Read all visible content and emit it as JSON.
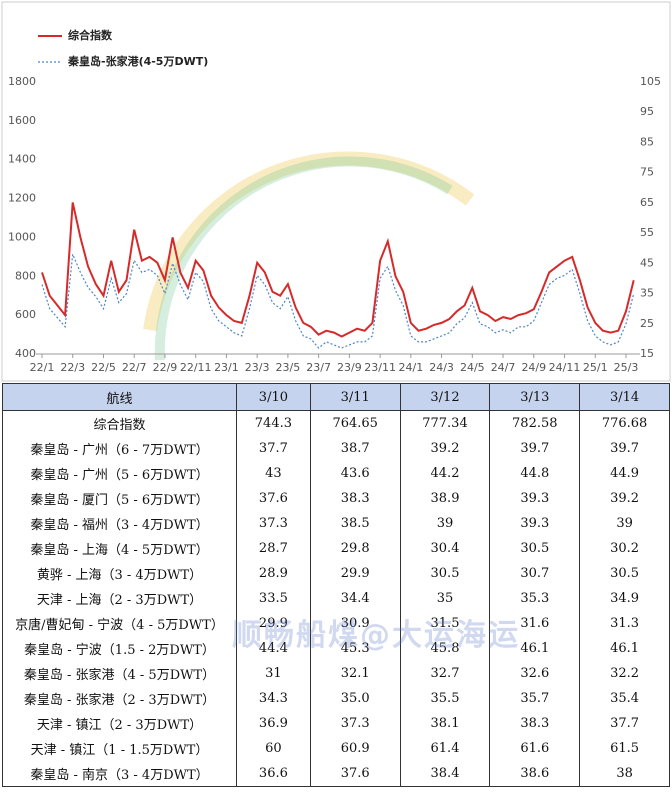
{
  "chart_data": {
    "type": "line",
    "categories": [
      "22/1",
      null,
      null,
      null,
      "22/3",
      null,
      null,
      null,
      "22/5",
      null,
      null,
      null,
      "22/7",
      null,
      null,
      null,
      "22/9",
      null,
      null,
      null,
      "22/11",
      null,
      null,
      null,
      "23/1",
      null,
      null,
      null,
      "23/3",
      null,
      null,
      null,
      "23/5",
      null,
      null,
      null,
      "23/7",
      null,
      null,
      null,
      "23/9",
      null,
      null,
      null,
      "23/11",
      null,
      null,
      null,
      "24/1",
      null,
      null,
      null,
      "24/3",
      null,
      null,
      null,
      "24/5",
      null,
      null,
      null,
      "24/7",
      null,
      null,
      null,
      "24/9",
      null,
      null,
      null,
      "24/11",
      null,
      null,
      null,
      "25/1",
      null,
      null,
      null,
      "25/3",
      null
    ],
    "series": [
      {
        "name": "综合指数",
        "color": "#d62a2a",
        "values": [
          820,
          700,
          650,
          600,
          1180,
          1000,
          850,
          760,
          700,
          880,
          720,
          780,
          1040,
          880,
          900,
          870,
          780,
          1000,
          820,
          740,
          880,
          830,
          700,
          640,
          600,
          570,
          560,
          700,
          870,
          820,
          720,
          700,
          760,
          640,
          560,
          540,
          500,
          520,
          510,
          490,
          510,
          530,
          520,
          560,
          880,
          980,
          800,
          720,
          560,
          520,
          530,
          550,
          560,
          580,
          620,
          650,
          740,
          620,
          600,
          570,
          590,
          580,
          600,
          610,
          630,
          720,
          820,
          850,
          880,
          900,
          780,
          640,
          560,
          520,
          510,
          520,
          620,
          780
        ]
      },
      {
        "name": "秦皇岛-张家港(4-5万DWT)",
        "color": "#4a86c8",
        "axis": "y2",
        "values": [
          38,
          30,
          27,
          24,
          48,
          42,
          37,
          34,
          30,
          40,
          32,
          35,
          46,
          42,
          43,
          41,
          35,
          45,
          38,
          33,
          42,
          39,
          30,
          26,
          24,
          22,
          21,
          30,
          41,
          38,
          32,
          30,
          34,
          26,
          21,
          20,
          17,
          19,
          18,
          17,
          18,
          19,
          19,
          21,
          40,
          44,
          36,
          31,
          21,
          19,
          19,
          20,
          21,
          22,
          25,
          27,
          32,
          25,
          24,
          22,
          23,
          22,
          24,
          24,
          26,
          32,
          38,
          40,
          41,
          43,
          35,
          26,
          21,
          19,
          18,
          19,
          25,
          35
        ]
      }
    ],
    "ylim": [
      400,
      1800
    ],
    "yticks": [
      400,
      600,
      800,
      1000,
      1200,
      1400,
      1600,
      1800
    ],
    "y2lim": [
      15,
      105
    ],
    "y2ticks": [
      15,
      25,
      35,
      45,
      55,
      65,
      75,
      85,
      95,
      105
    ]
  },
  "table": {
    "header": [
      "航线",
      "3/10",
      "3/11",
      "3/12",
      "3/13",
      "3/14"
    ],
    "rows": [
      [
        "综合指数",
        "744.3",
        "764.65",
        "777.34",
        "782.58",
        "776.68"
      ],
      [
        "秦皇岛 - 广州（6 - 7万DWT）",
        "37.7",
        "38.7",
        "39.2",
        "39.7",
        "39.7"
      ],
      [
        "秦皇岛 - 广州（5 - 6万DWT）",
        "43",
        "43.6",
        "44.2",
        "44.8",
        "44.9"
      ],
      [
        "秦皇岛 - 厦门（5 - 6万DWT）",
        "37.6",
        "38.3",
        "38.9",
        "39.3",
        "39.2"
      ],
      [
        "秦皇岛 - 福州（3 - 4万DWT）",
        "37.3",
        "38.5",
        "39",
        "39.3",
        "39"
      ],
      [
        "秦皇岛 - 上海（4 - 5万DWT）",
        "28.7",
        "29.8",
        "30.4",
        "30.5",
        "30.2"
      ],
      [
        "黄骅 - 上海（3 - 4万DWT）",
        "28.9",
        "29.9",
        "30.5",
        "30.7",
        "30.5"
      ],
      [
        "天津 - 上海（2 - 3万DWT）",
        "33.5",
        "34.4",
        "35",
        "35.3",
        "34.9"
      ],
      [
        "京唐/曹妃甸 - 宁波（4 - 5万DWT）",
        "29.9",
        "30.9",
        "31.5",
        "31.6",
        "31.3"
      ],
      [
        "秦皇岛 - 宁波（1.5 - 2万DWT）",
        "44.4",
        "45.3",
        "45.8",
        "46.1",
        "46.1"
      ],
      [
        "秦皇岛 - 张家港（4 - 5万DWT）",
        "31",
        "32.1",
        "32.7",
        "32.6",
        "32.2"
      ],
      [
        "秦皇岛 - 张家港（2 - 3万DWT）",
        "34.3",
        "35.0",
        "35.5",
        "35.7",
        "35.4"
      ],
      [
        "天津 - 镇江（2 - 3万DWT）",
        "36.9",
        "37.3",
        "38.1",
        "38.3",
        "37.7"
      ],
      [
        "天津 - 镇江（1 - 1.5万DWT）",
        "60",
        "60.9",
        "61.4",
        "61.6",
        "61.5"
      ],
      [
        "秦皇岛 - 南京（3 - 4万DWT）",
        "36.6",
        "37.6",
        "38.4",
        "38.6",
        "38"
      ]
    ]
  },
  "watermark": "顺畅船煤@大运海运"
}
